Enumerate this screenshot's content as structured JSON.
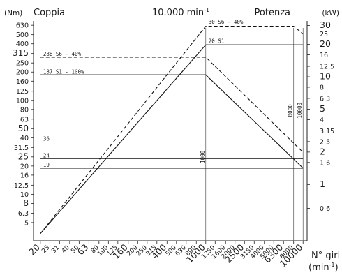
{
  "chart_data": {
    "type": "line",
    "title_left": "Coppia",
    "title_center_base": "10.000 min",
    "title_center_sup": "-1",
    "title_right": "Potenza",
    "y_left_unit": "(Nm)",
    "y_right_unit": "(kW)",
    "x_label": "N° giri",
    "x_unit_base": "(min",
    "x_unit_sup": "-1",
    "x_unit_close": ")",
    "scale": "log",
    "xlim": [
      17,
      11000
    ],
    "y_left_lim": [
      3.2,
      700
    ],
    "y_right_lim": [
      0.3,
      33
    ],
    "x_ticks": [
      {
        "label": "20",
        "value": 20,
        "major": true
      },
      {
        "label": "25",
        "value": 25,
        "major": false
      },
      {
        "label": "31",
        "value": 31.5,
        "major": false
      },
      {
        "label": "40",
        "value": 40,
        "major": false
      },
      {
        "label": "50",
        "value": 50,
        "major": false
      },
      {
        "label": "63",
        "value": 63,
        "major": true
      },
      {
        "label": "80",
        "value": 80,
        "major": false
      },
      {
        "label": "100",
        "value": 100,
        "major": false
      },
      {
        "label": "125",
        "value": 125,
        "major": false
      },
      {
        "label": "160",
        "value": 160,
        "major": true
      },
      {
        "label": "200",
        "value": 200,
        "major": false
      },
      {
        "label": "250",
        "value": 250,
        "major": false
      },
      {
        "label": "315",
        "value": 315,
        "major": false
      },
      {
        "label": "400",
        "value": 400,
        "major": true
      },
      {
        "label": "500",
        "value": 500,
        "major": false
      },
      {
        "label": "630",
        "value": 630,
        "major": false
      },
      {
        "label": "800",
        "value": 800,
        "major": false
      },
      {
        "label": "1000",
        "value": 1000,
        "major": true
      },
      {
        "label": "1250",
        "value": 1250,
        "major": false
      },
      {
        "label": "1600",
        "value": 1600,
        "major": false
      },
      {
        "label": "2000",
        "value": 2000,
        "major": false
      },
      {
        "label": "2500",
        "value": 2500,
        "major": true
      },
      {
        "label": "3150",
        "value": 3150,
        "major": false
      },
      {
        "label": "4000",
        "value": 4000,
        "major": false
      },
      {
        "label": "5000",
        "value": 5000,
        "major": false
      },
      {
        "label": "6300",
        "value": 6300,
        "major": true
      },
      {
        "label": "8000",
        "value": 8000,
        "major": false
      },
      {
        "label": "10000",
        "value": 10000,
        "major": true
      }
    ],
    "y_left_ticks": [
      {
        "label": "5",
        "value": 5,
        "major": false
      },
      {
        "label": "6.3",
        "value": 6.3,
        "major": false
      },
      {
        "label": "8",
        "value": 8,
        "major": true
      },
      {
        "label": "10",
        "value": 10,
        "major": false
      },
      {
        "label": "12.5",
        "value": 12.5,
        "major": false
      },
      {
        "label": "16",
        "value": 16,
        "major": false
      },
      {
        "label": "20",
        "value": 20,
        "major": false
      },
      {
        "label": "25",
        "value": 25,
        "major": true
      },
      {
        "label": "31.5",
        "value": 31.5,
        "major": false
      },
      {
        "label": "40",
        "value": 40,
        "major": false
      },
      {
        "label": "50",
        "value": 50,
        "major": true
      },
      {
        "label": "63",
        "value": 63,
        "major": false
      },
      {
        "label": "80",
        "value": 80,
        "major": false
      },
      {
        "label": "100",
        "value": 100,
        "major": false
      },
      {
        "label": "125",
        "value": 125,
        "major": false
      },
      {
        "label": "160",
        "value": 160,
        "major": false
      },
      {
        "label": "200",
        "value": 200,
        "major": false
      },
      {
        "label": "250",
        "value": 250,
        "major": false
      },
      {
        "label": "315",
        "value": 315,
        "major": true
      },
      {
        "label": "400",
        "value": 400,
        "major": false
      },
      {
        "label": "500",
        "value": 500,
        "major": false
      },
      {
        "label": "630",
        "value": 630,
        "major": false
      }
    ],
    "y_right_ticks": [
      {
        "label": "0.6",
        "value": 0.6,
        "major": false
      },
      {
        "label": "1",
        "value": 1,
        "major": true
      },
      {
        "label": "1.6",
        "value": 1.6,
        "major": false
      },
      {
        "label": "2",
        "value": 2,
        "major": true
      },
      {
        "label": "2.5",
        "value": 2.5,
        "major": false
      },
      {
        "label": "3.15",
        "value": 3.15,
        "major": false
      },
      {
        "label": "4",
        "value": 4,
        "major": false
      },
      {
        "label": "5",
        "value": 5,
        "major": true
      },
      {
        "label": "6.3",
        "value": 6.3,
        "major": false
      },
      {
        "label": "8",
        "value": 8,
        "major": false
      },
      {
        "label": "10",
        "value": 10,
        "major": true
      },
      {
        "label": "12.5",
        "value": 12.5,
        "major": false
      },
      {
        "label": "16",
        "value": 16,
        "major": false
      },
      {
        "label": "20",
        "value": 20,
        "major": true
      },
      {
        "label": "25",
        "value": 25,
        "major": false
      },
      {
        "label": "30",
        "value": 30,
        "major": true
      }
    ],
    "series": [
      {
        "label": "30 S6 - 40%",
        "style": "dashed",
        "axis": "right",
        "label_at": {
          "x": 1000,
          "y": 31
        },
        "points": [
          {
            "x": 20,
            "y": 0.35
          },
          {
            "x": 1000,
            "y": 29.5
          },
          {
            "x": 8000,
            "y": 29.5
          },
          {
            "x": 10000,
            "y": 25
          }
        ]
      },
      {
        "label": "20 S1",
        "style": "solid",
        "axis": "right",
        "label_at": {
          "x": 1000,
          "y": 20.7
        },
        "points": [
          {
            "x": 1000,
            "y": 19.8
          },
          {
            "x": 10000,
            "y": 19.8
          }
        ]
      },
      {
        "label": "288 S6 - 40%",
        "style": "dashed",
        "axis": "left",
        "label_at": {
          "x": 20,
          "y": 297
        },
        "points": [
          {
            "x": 20,
            "y": 288
          },
          {
            "x": 1000,
            "y": 288
          },
          {
            "x": 8000,
            "y": 35
          },
          {
            "x": 10000,
            "y": 28
          }
        ]
      },
      {
        "label": "187 S1 - 100%",
        "style": "solid",
        "axis": "left",
        "label_at": {
          "x": 20,
          "y": 192
        },
        "points": [
          {
            "x": 20,
            "y": 187
          },
          {
            "x": 1000,
            "y": 187
          },
          {
            "x": 10000,
            "y": 19
          }
        ]
      },
      {
        "label": "36",
        "style": "solid",
        "axis": "left",
        "label_at": {
          "x": 20,
          "y": 37.2
        },
        "points": [
          {
            "x": 20,
            "y": 36
          },
          {
            "x": 10000,
            "y": 36
          }
        ]
      },
      {
        "label": "24",
        "style": "solid",
        "axis": "left",
        "label_at": {
          "x": 20,
          "y": 24.8
        },
        "points": [
          {
            "x": 20,
            "y": 24
          },
          {
            "x": 10000,
            "y": 24
          }
        ]
      },
      {
        "label": "19",
        "style": "solid",
        "axis": "left",
        "label_at": {
          "x": 20,
          "y": 19.6
        },
        "points": [
          {
            "x": 20,
            "y": 19
          },
          {
            "x": 10000,
            "y": 19
          }
        ]
      },
      {
        "label": "",
        "style": "solid",
        "axis": "right",
        "points": [
          {
            "x": 20,
            "y": 0.35
          },
          {
            "x": 1000,
            "y": 19.8
          }
        ]
      }
    ],
    "vertical_markers": [
      {
        "label": "1000",
        "x": 1000,
        "label_y": 25
      },
      {
        "label": "8000",
        "x": 8000,
        "label_y": 78
      },
      {
        "label": "10000",
        "x": 10000,
        "label_y": 78
      }
    ],
    "grid": false,
    "legend": "none"
  }
}
